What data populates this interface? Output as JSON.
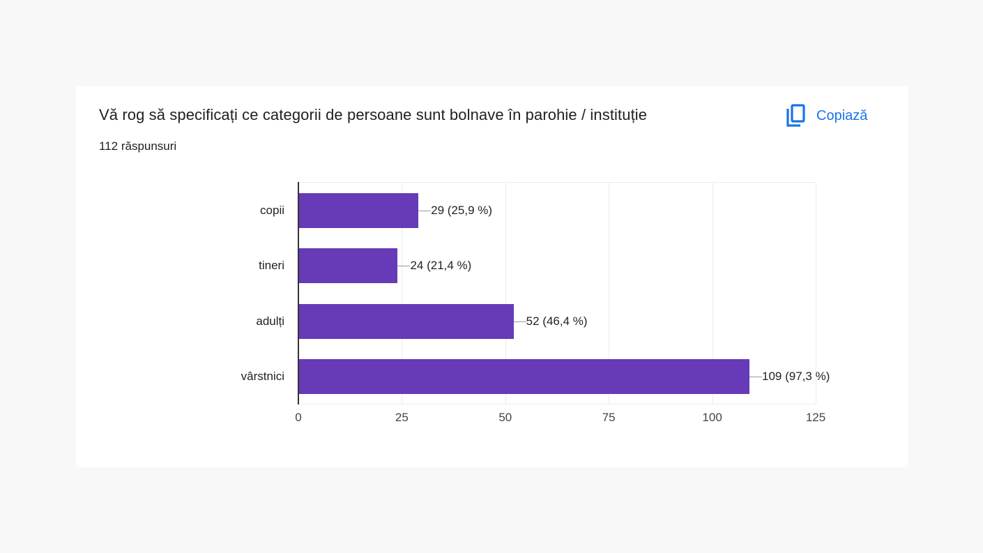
{
  "card": {
    "title": "Vă rog să specificați ce categorii de persoane sunt bolnave în parohie / instituție",
    "responses": "112 răspunsuri",
    "copy_button": {
      "label": "Copiază",
      "icon": "copy-icon"
    }
  },
  "colors": {
    "accent": "#1a73e8",
    "bar": "#673ab7",
    "page_bg": "#f8f8f8",
    "card_bg": "#ffffff"
  },
  "chart_data": {
    "type": "bar",
    "orientation": "horizontal",
    "title": "Vă rog să specificați ce categorii de persoane sunt bolnave în parohie / instituție",
    "subtitle": "112 răspunsuri",
    "categories": [
      "copii",
      "tineri",
      "adulți",
      "vârstnici"
    ],
    "values": [
      29,
      24,
      52,
      109
    ],
    "percentages": [
      25.9,
      21.4,
      46.4,
      97.3
    ],
    "value_labels": [
      "29 (25,9 %)",
      "24 (21,4 %)",
      "52 (46,4 %)",
      "109 (97,3 %)"
    ],
    "xlabel": "",
    "ylabel": "",
    "xlim": [
      0,
      125
    ],
    "x_ticks": [
      "0",
      "25",
      "50",
      "75",
      "100",
      "125"
    ],
    "grid": true,
    "legend": "none"
  }
}
